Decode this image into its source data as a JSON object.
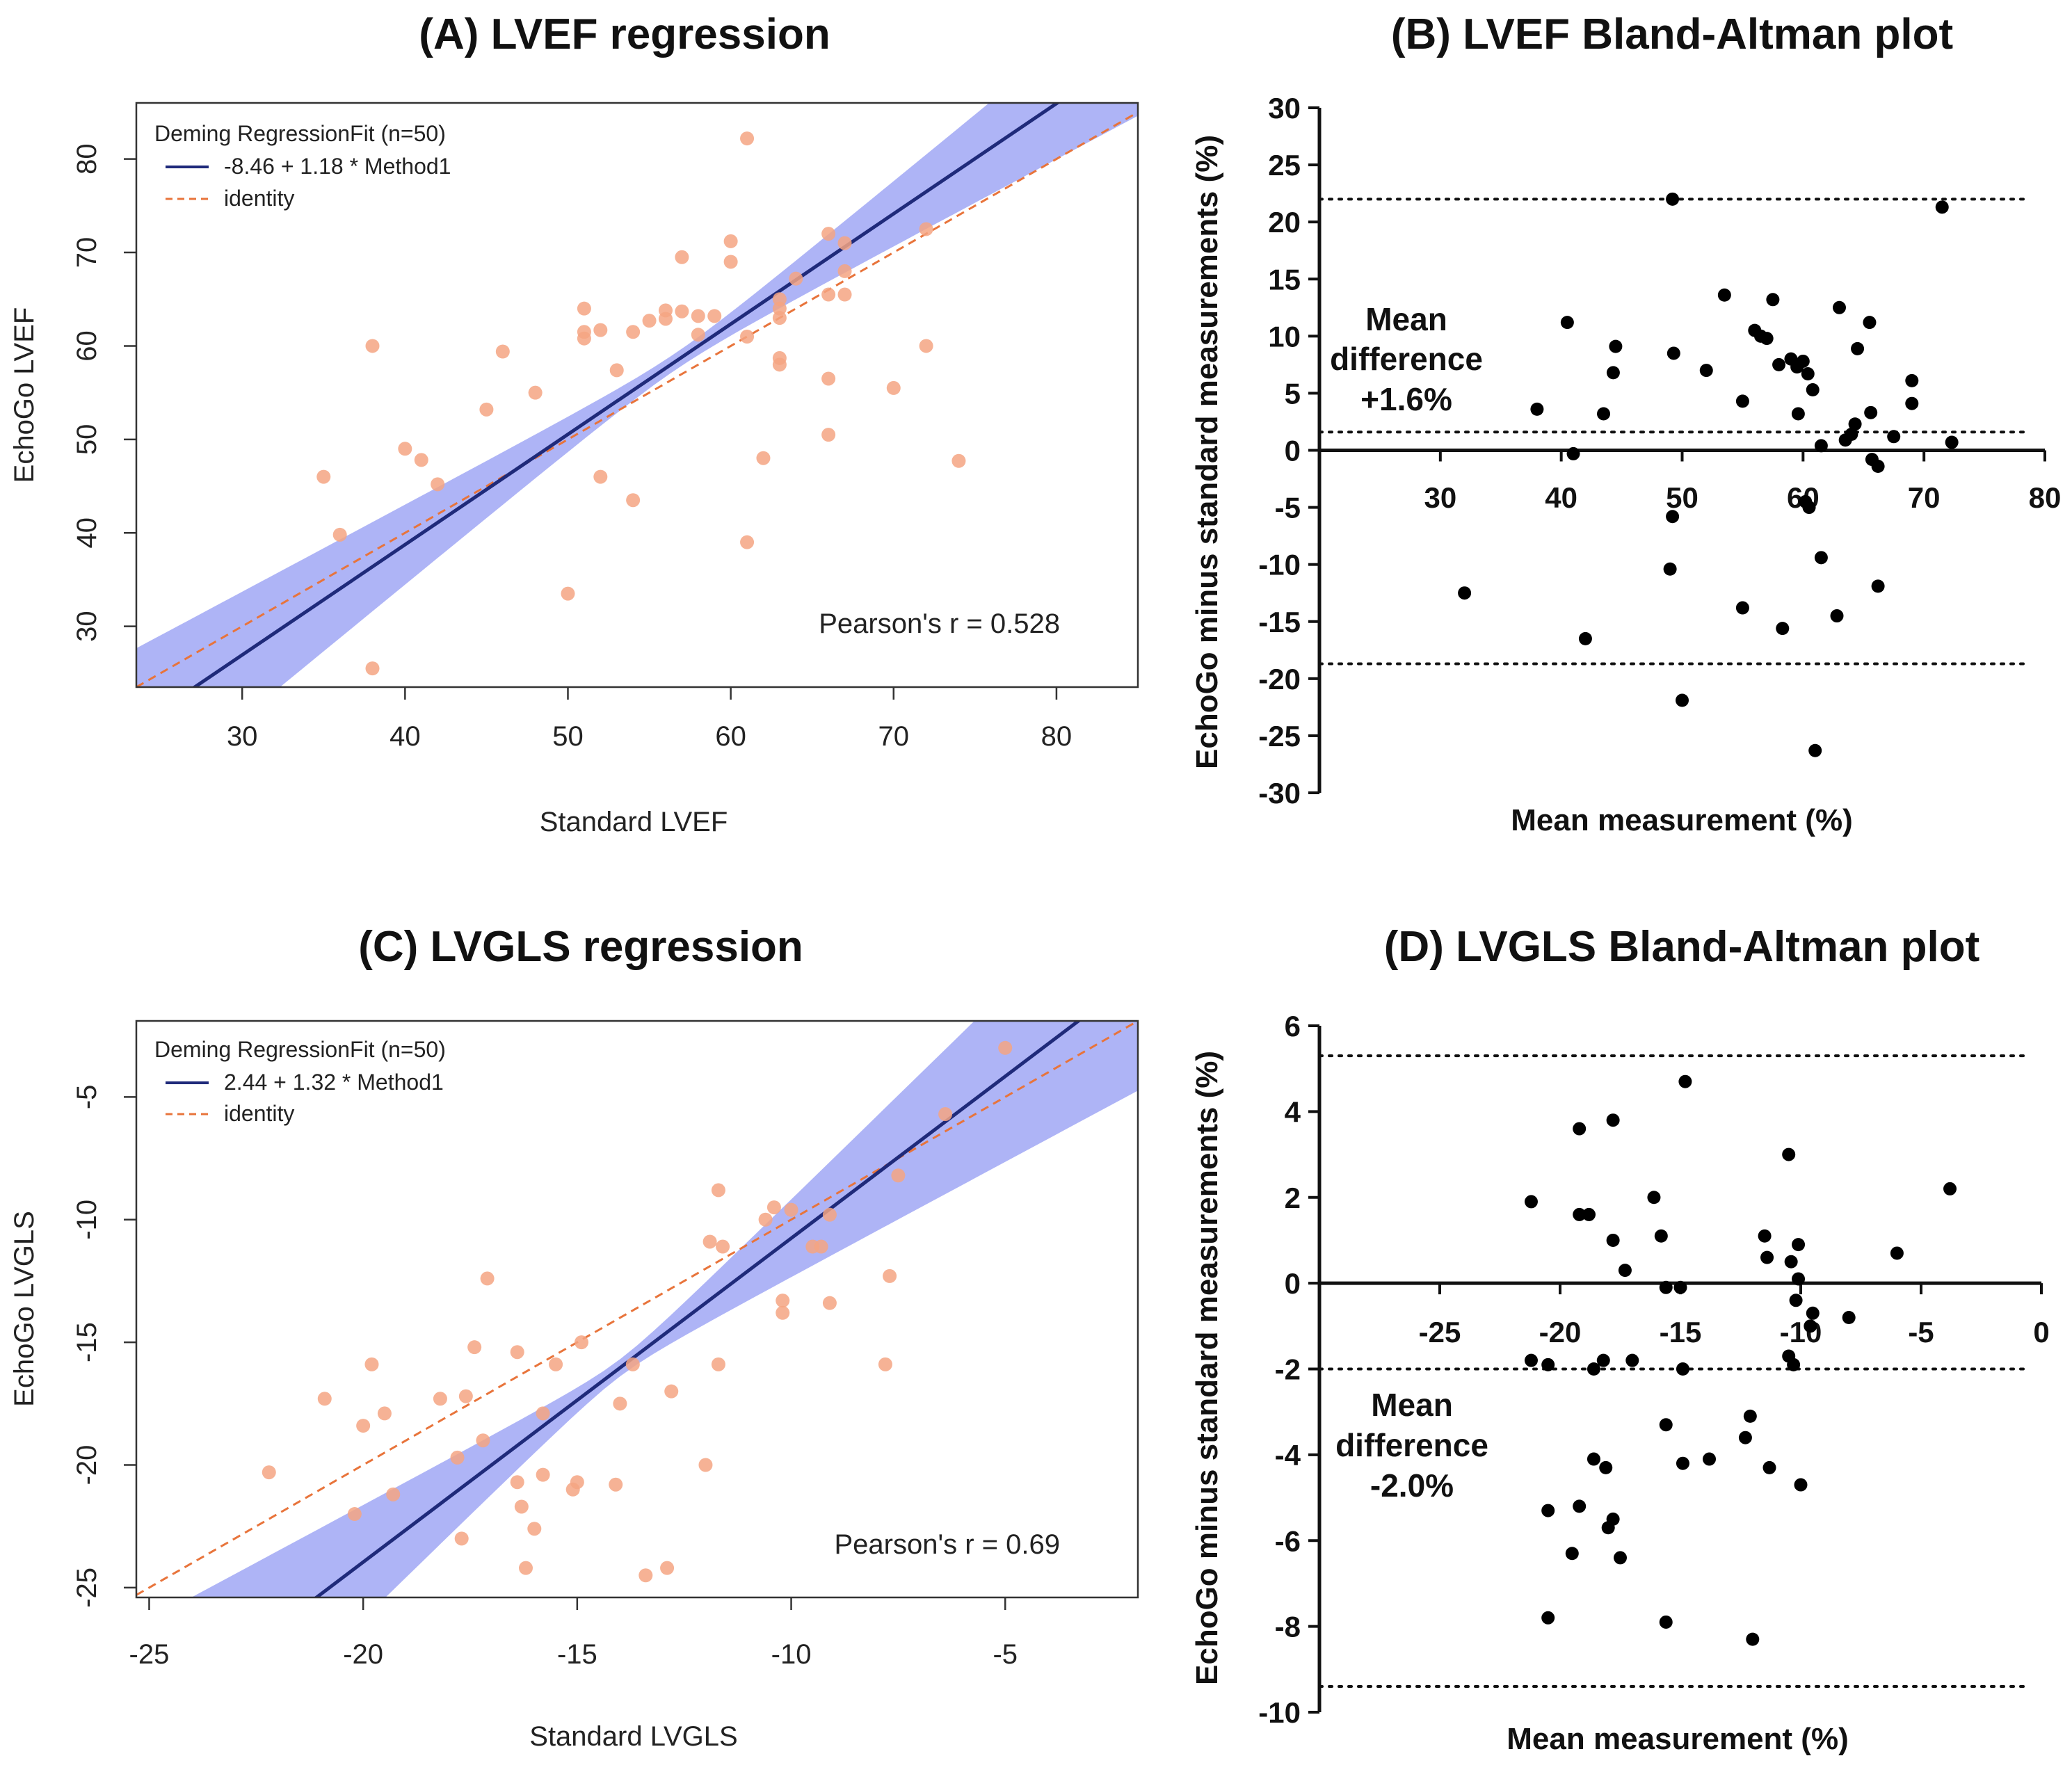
{
  "chart_data": [
    {
      "id": "A",
      "type": "scatter",
      "title": "(A) LVEF regression",
      "xlabel": "Standard LVEF",
      "ylabel": "EchoGo LVEF",
      "xlim": [
        23.5,
        85
      ],
      "ylim": [
        23.5,
        86
      ],
      "xticks": [
        30,
        40,
        50,
        60,
        70,
        80
      ],
      "yticks": [
        30,
        40,
        50,
        60,
        70,
        80
      ],
      "legend": {
        "title": "Deming RegressionFit (n=50)",
        "entries": [
          "-8.46 + 1.18 * Method1",
          "identity"
        ],
        "position": "top-left"
      },
      "fit": {
        "intercept": -8.46,
        "slope": 1.18
      },
      "annotation": "Pearson's r = 0.528",
      "colors": {
        "points": "#f4a582",
        "fit": "#1f2a7a",
        "identity": "#e8743b",
        "band": "#aab0f5"
      },
      "points": [
        [
          38,
          60
        ],
        [
          38,
          25.5
        ],
        [
          36,
          39.8
        ],
        [
          35,
          46
        ],
        [
          40,
          49
        ],
        [
          41,
          47.8
        ],
        [
          42,
          45.2
        ],
        [
          45,
          53.2
        ],
        [
          46,
          59.4
        ],
        [
          48,
          55
        ],
        [
          50,
          33.5
        ],
        [
          51,
          64
        ],
        [
          51,
          61.5
        ],
        [
          51,
          60.8
        ],
        [
          52,
          61.7
        ],
        [
          52,
          46
        ],
        [
          53,
          57.4
        ],
        [
          54,
          61.5
        ],
        [
          54,
          43.5
        ],
        [
          55,
          62.7
        ],
        [
          56,
          62.9
        ],
        [
          56,
          63.8
        ],
        [
          57,
          69.5
        ],
        [
          57,
          63.7
        ],
        [
          58,
          63.2
        ],
        [
          58,
          61.2
        ],
        [
          60,
          71.2
        ],
        [
          60,
          69
        ],
        [
          61,
          82.2
        ],
        [
          61,
          61
        ],
        [
          61,
          39
        ],
        [
          62,
          48
        ],
        [
          63,
          65
        ],
        [
          63,
          64
        ],
        [
          63,
          63
        ],
        [
          63,
          58.7
        ],
        [
          63,
          58
        ],
        [
          64,
          67.2
        ],
        [
          66,
          72
        ],
        [
          66,
          65.5
        ],
        [
          66,
          56.5
        ],
        [
          66,
          50.5
        ],
        [
          67,
          71
        ],
        [
          67,
          68
        ],
        [
          67,
          65.5
        ],
        [
          70,
          55.5
        ],
        [
          72,
          72.5
        ],
        [
          72,
          60
        ],
        [
          74,
          47.7
        ],
        [
          59,
          63.2
        ]
      ]
    },
    {
      "id": "B",
      "type": "scatter",
      "title": "(B) LVEF Bland-Altman plot",
      "xlabel": "Mean measurement (%)",
      "ylabel": "EchoGo minus standard measurements (%)",
      "xlim": [
        20,
        80
      ],
      "ylim": [
        -30,
        30
      ],
      "xticks": [
        30,
        40,
        50,
        60,
        70,
        80
      ],
      "yticks": [
        30,
        25,
        20,
        15,
        10,
        5,
        0,
        -5,
        -10,
        -15,
        -20,
        -25,
        -30
      ],
      "reference_lines": [
        22,
        1.6,
        -18.7
      ],
      "annotation": [
        "Mean",
        "difference",
        "+1.6%"
      ],
      "points": [
        [
          32,
          -12.5
        ],
        [
          38,
          3.6
        ],
        [
          40.5,
          11.2
        ],
        [
          41,
          -0.3
        ],
        [
          42,
          -16.5
        ],
        [
          43.5,
          3.2
        ],
        [
          44.3,
          6.8
        ],
        [
          44.5,
          9.1
        ],
        [
          49.2,
          22
        ],
        [
          49.3,
          8.5
        ],
        [
          49.2,
          -5.8
        ],
        [
          49,
          -10.4
        ],
        [
          50,
          -21.9
        ],
        [
          52,
          7
        ],
        [
          53.5,
          13.6
        ],
        [
          55,
          4.3
        ],
        [
          55,
          -13.8
        ],
        [
          56,
          10.5
        ],
        [
          56.5,
          10
        ],
        [
          57,
          9.8
        ],
        [
          57.5,
          13.2
        ],
        [
          58,
          7.5
        ],
        [
          58.3,
          -15.6
        ],
        [
          59,
          8
        ],
        [
          59.5,
          7.3
        ],
        [
          59.6,
          3.2
        ],
        [
          60,
          7.8
        ],
        [
          60.4,
          6.7
        ],
        [
          60.5,
          -5
        ],
        [
          60.8,
          5.3
        ],
        [
          61,
          -26.3
        ],
        [
          61.5,
          0.4
        ],
        [
          61.5,
          -9.4
        ],
        [
          62.8,
          -14.5
        ],
        [
          63,
          12.5
        ],
        [
          63.5,
          0.9
        ],
        [
          64,
          1.4
        ],
        [
          64.3,
          2.3
        ],
        [
          64.5,
          8.9
        ],
        [
          65.5,
          11.2
        ],
        [
          65.6,
          3.3
        ],
        [
          65.7,
          -0.8
        ],
        [
          66.2,
          -1.4
        ],
        [
          66.2,
          -11.9
        ],
        [
          67.5,
          1.2
        ],
        [
          69,
          6.1
        ],
        [
          69,
          4.1
        ],
        [
          71.5,
          21.3
        ],
        [
          72.3,
          0.7
        ],
        [
          60.2,
          -4.5
        ]
      ]
    },
    {
      "id": "C",
      "type": "scatter",
      "title": "(C) LVGLS regression",
      "xlabel": "Standard LVGLS",
      "ylabel": "EchoGo LVGLS",
      "xlim": [
        -25.3,
        -1.9
      ],
      "ylim": [
        -25.4,
        -1.9
      ],
      "xticks": [
        -25,
        -20,
        -15,
        -10,
        -5
      ],
      "yticks": [
        -5,
        -10,
        -15,
        -20,
        -25
      ],
      "legend": {
        "title": "Deming RegressionFit (n=50)",
        "entries": [
          "2.44 + 1.32 * Method1",
          "identity"
        ],
        "position": "top-left"
      },
      "fit": {
        "intercept": 2.44,
        "slope": 1.32
      },
      "annotation": "Pearson's r = 0.69",
      "colors": {
        "points": "#f4a582",
        "fit": "#1f2a7a",
        "identity": "#e8743b",
        "band": "#aab0f5"
      },
      "points": [
        [
          -22.2,
          -20.3
        ],
        [
          -20.9,
          -17.3
        ],
        [
          -20.2,
          -22
        ],
        [
          -20,
          -18.4
        ],
        [
          -19.8,
          -15.9
        ],
        [
          -19.5,
          -17.9
        ],
        [
          -19.3,
          -21.2
        ],
        [
          -18.2,
          -17.3
        ],
        [
          -17.8,
          -19.7
        ],
        [
          -17.6,
          -17.2
        ],
        [
          -17.7,
          -23
        ],
        [
          -17.4,
          -15.2
        ],
        [
          -17.2,
          -19
        ],
        [
          -17.1,
          -12.4
        ],
        [
          -16.4,
          -15.4
        ],
        [
          -16.4,
          -20.7
        ],
        [
          -16.3,
          -21.7
        ],
        [
          -16.2,
          -24.2
        ],
        [
          -16,
          -22.6
        ],
        [
          -15.8,
          -17.9
        ],
        [
          -15.8,
          -20.4
        ],
        [
          -15.5,
          -15.9
        ],
        [
          -15.1,
          -21
        ],
        [
          -15,
          -20.7
        ],
        [
          -14.9,
          -15
        ],
        [
          -14.1,
          -20.8
        ],
        [
          -14,
          -17.5
        ],
        [
          -13.7,
          -15.9
        ],
        [
          -13.4,
          -24.5
        ],
        [
          -12.9,
          -24.2
        ],
        [
          -12.8,
          -17
        ],
        [
          -12,
          -20
        ],
        [
          -11.9,
          -10.9
        ],
        [
          -11.7,
          -8.8
        ],
        [
          -11.7,
          -15.9
        ],
        [
          -11.6,
          -11.1
        ],
        [
          -10.6,
          -10
        ],
        [
          -10.4,
          -9.5
        ],
        [
          -10.2,
          -13.3
        ],
        [
          -10.2,
          -13.8
        ],
        [
          -9.5,
          -11.1
        ],
        [
          -9.3,
          -11.1
        ],
        [
          -9.1,
          -9.8
        ],
        [
          -9.1,
          -13.4
        ],
        [
          -7.8,
          -15.9
        ],
        [
          -7.7,
          -12.3
        ],
        [
          -7.5,
          -8.2
        ],
        [
          -6.4,
          -5.7
        ],
        [
          -5,
          -3
        ],
        [
          -10,
          -9.6
        ]
      ]
    },
    {
      "id": "D",
      "type": "scatter",
      "title": "(D) LVGLS Bland-Altman plot",
      "xlabel": "Mean measurement (%)",
      "ylabel": "EchoGo minus standard measurements (%)",
      "xlim": [
        -30,
        0
      ],
      "ylim": [
        -10,
        6
      ],
      "xticks": [
        -25,
        -20,
        -15,
        -10,
        -5,
        0
      ],
      "yticks": [
        6,
        4,
        2,
        0,
        -2,
        -4,
        -6,
        -8,
        -10
      ],
      "reference_lines": [
        5.3,
        -2,
        -9.4
      ],
      "annotation": [
        "Mean",
        "difference",
        "-2.0%"
      ],
      "points": [
        [
          -21.2,
          1.9
        ],
        [
          -21.2,
          -1.8
        ],
        [
          -20.5,
          -1.9
        ],
        [
          -20.5,
          -5.3
        ],
        [
          -20.5,
          -7.8
        ],
        [
          -19.5,
          -6.3
        ],
        [
          -19.2,
          3.6
        ],
        [
          -19.2,
          1.6
        ],
        [
          -19.2,
          -5.2
        ],
        [
          -18.8,
          1.6
        ],
        [
          -18.6,
          -2
        ],
        [
          -18.6,
          -4.1
        ],
        [
          -18.2,
          -1.8
        ],
        [
          -18.1,
          -4.3
        ],
        [
          -18,
          -5.7
        ],
        [
          -17.8,
          3.8
        ],
        [
          -17.8,
          1
        ],
        [
          -17.8,
          -5.5
        ],
        [
          -17.5,
          -6.4
        ],
        [
          -17.3,
          0.3
        ],
        [
          -17,
          -1.8
        ],
        [
          -16.1,
          2
        ],
        [
          -15.8,
          1.1
        ],
        [
          -15.6,
          -0.1
        ],
        [
          -15.6,
          -3.3
        ],
        [
          -15.6,
          -7.9
        ],
        [
          -15,
          -0.1
        ],
        [
          -14.8,
          4.7
        ],
        [
          -14.9,
          -2
        ],
        [
          -14.9,
          -4.2
        ],
        [
          -13.8,
          -4.1
        ],
        [
          -12.3,
          -3.6
        ],
        [
          -12.1,
          -3.1
        ],
        [
          -12,
          -8.3
        ],
        [
          -11.5,
          1.1
        ],
        [
          -11.4,
          0.6
        ],
        [
          -11.3,
          -4.3
        ],
        [
          -10.5,
          3
        ],
        [
          -10.5,
          -1.7
        ],
        [
          -10.4,
          0.5
        ],
        [
          -10.3,
          -1.9
        ],
        [
          -10.1,
          0.9
        ],
        [
          -10.1,
          0.1
        ],
        [
          -10,
          -4.7
        ],
        [
          -9.5,
          -0.7
        ],
        [
          -8,
          -0.8
        ],
        [
          -6,
          0.7
        ],
        [
          -3.8,
          2.2
        ],
        [
          -10.2,
          -0.4
        ],
        [
          -9.6,
          -1
        ]
      ]
    }
  ]
}
